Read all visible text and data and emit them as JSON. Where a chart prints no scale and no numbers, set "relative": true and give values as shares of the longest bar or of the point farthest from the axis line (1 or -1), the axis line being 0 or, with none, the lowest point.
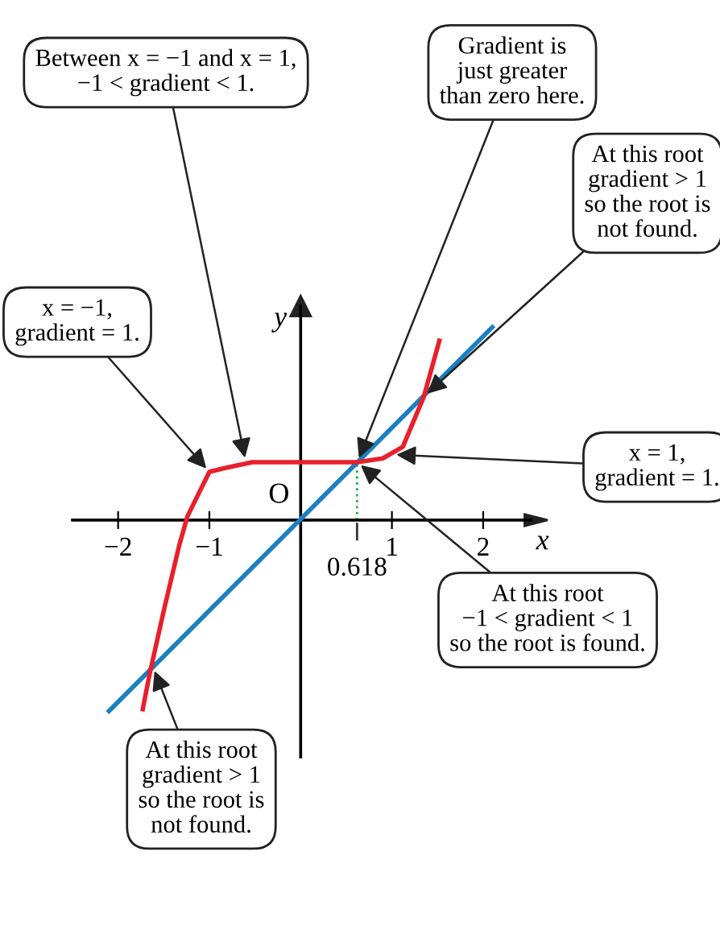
{
  "chart_data": {
    "type": "line",
    "relative": true,
    "xlabel": "x",
    "ylabel": "y",
    "xlim": [
      -2.5,
      2.53
    ],
    "xticks": [
      {
        "value": -2,
        "label": "−2"
      },
      {
        "value": -1,
        "label": "−1"
      },
      1,
      2
    ],
    "grid": false,
    "marker": "none",
    "line_style": "solid",
    "series": [
      {
        "color": "#1a7fc4",
        "x": [
          -2.1,
          2.1
        ],
        "values": [
          -0.99,
          1
        ]
      },
      {
        "color": "#e8202a",
        "x": [
          -1.73,
          -1.66,
          -1.5,
          -1.33,
          -1.24,
          -1.0,
          -0.83,
          -0.53,
          0,
          0.62,
          0.9,
          1.12,
          1.35,
          1.52
        ],
        "values": [
          -0.98,
          -0.81,
          -0.47,
          -0.13,
          0.02,
          0.25,
          0.27,
          0.3,
          0.3,
          0.3,
          0.32,
          0.38,
          0.64,
          0.93
        ]
      }
    ],
    "ref_lines": [
      {
        "axis": "x",
        "value": 0.618,
        "label": "0.618",
        "color": "#22aa44",
        "line_style": "dotted"
      }
    ],
    "annotations": [
      {
        "text": "Between x = −1 and x = 1,\n−1 < gradient < 1.",
        "x": -0.6,
        "y": 0.3
      },
      {
        "text": "Gradient is\njust greater\nthan zero here.",
        "x": 0.62,
        "y": 0.3
      },
      {
        "text": "At this root\ngradient > 1\nso the root is\nnot found.",
        "x": 1.35,
        "y": 0.64
      },
      {
        "text": "x = −1,\ngradient = 1.",
        "x": -1.0,
        "y": 0.25
      },
      {
        "text": "x = 1,\ngradient = 1.",
        "x": 1.0,
        "y": 0.34
      },
      {
        "text": "At this root\n−1 < gradient < 1\nso the root is found.",
        "x": 0.62,
        "y": 0.3
      },
      {
        "text": "At this root\ngradient > 1\nso the root is\nnot found.",
        "x": -1.62,
        "y": -0.76
      },
      {
        "text": "O",
        "x": 0,
        "y": 0
      }
    ]
  }
}
